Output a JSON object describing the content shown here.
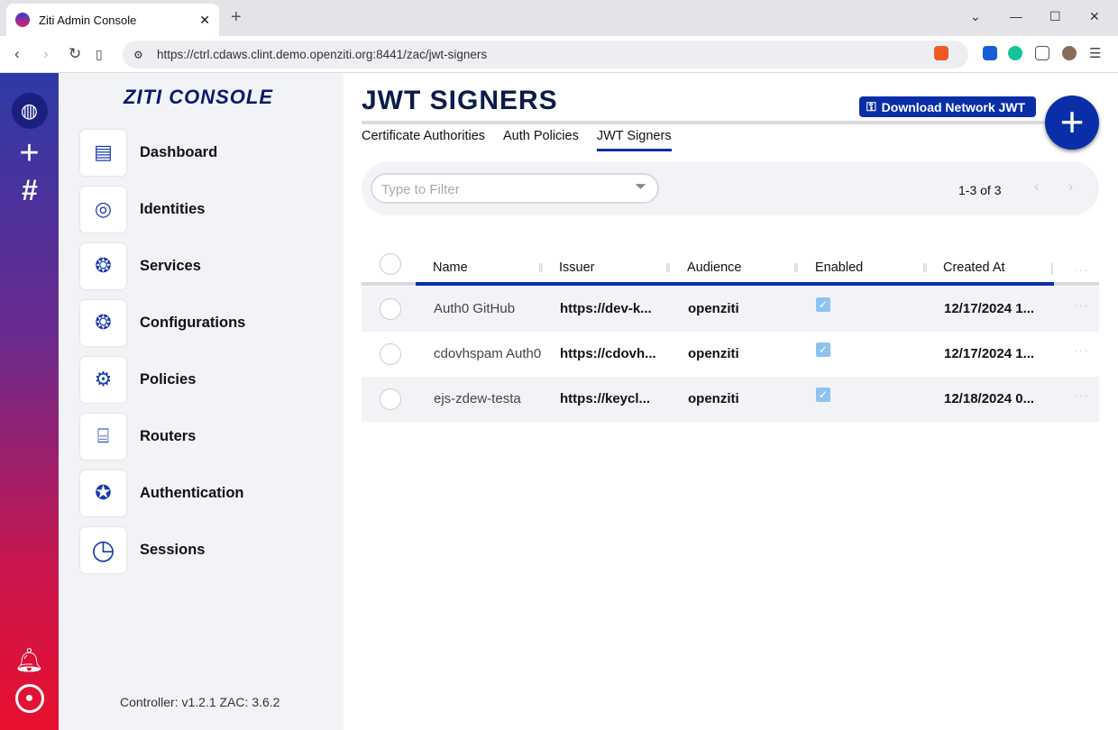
{
  "browser": {
    "tab_title": "Ziti Admin Console",
    "url": "https://ctrl.cdaws.clint.demo.openziti.org:8441/zac/jwt-signers"
  },
  "sidebar": {
    "brand": "ZITI CONSOLE",
    "items": [
      {
        "label": "Dashboard",
        "icon": "dashboard-icon"
      },
      {
        "label": "Identities",
        "icon": "fingerprint-icon"
      },
      {
        "label": "Services",
        "icon": "services-network-icon"
      },
      {
        "label": "Configurations",
        "icon": "config-network-icon"
      },
      {
        "label": "Policies",
        "icon": "gears-icon"
      },
      {
        "label": "Routers",
        "icon": "router-icon"
      },
      {
        "label": "Authentication",
        "icon": "badge-icon"
      },
      {
        "label": "Sessions",
        "icon": "clock-icon"
      }
    ],
    "version": "Controller: v1.2.1 ZAC: 3.6.2"
  },
  "main": {
    "title": "JWT SIGNERS",
    "download_label": "Download Network JWT",
    "tabs": [
      {
        "label": "Certificate Authorities"
      },
      {
        "label": "Auth Policies"
      },
      {
        "label": "JWT Signers",
        "active": true
      }
    ],
    "filter_placeholder": "Type to Filter",
    "pagination": "1-3 of 3"
  },
  "table": {
    "columns": [
      "Name",
      "Issuer",
      "Audience",
      "Enabled",
      "Created At"
    ],
    "rows": [
      {
        "name": "Auth0 GitHub",
        "issuer": "https://dev-k...",
        "audience": "openziti",
        "enabled": true,
        "created": "12/17/2024 1..."
      },
      {
        "name": "cdovhspam Auth0",
        "issuer": "https://cdovh...",
        "audience": "openziti",
        "enabled": true,
        "created": "12/17/2024 1..."
      },
      {
        "name": "ejs-zdew-testa",
        "issuer": "https://keycl...",
        "audience": "openziti",
        "enabled": true,
        "created": "12/18/2024 0..."
      }
    ]
  },
  "colors": {
    "accent": "#0a2ea8",
    "enabled_check": "#8ec3f0"
  }
}
